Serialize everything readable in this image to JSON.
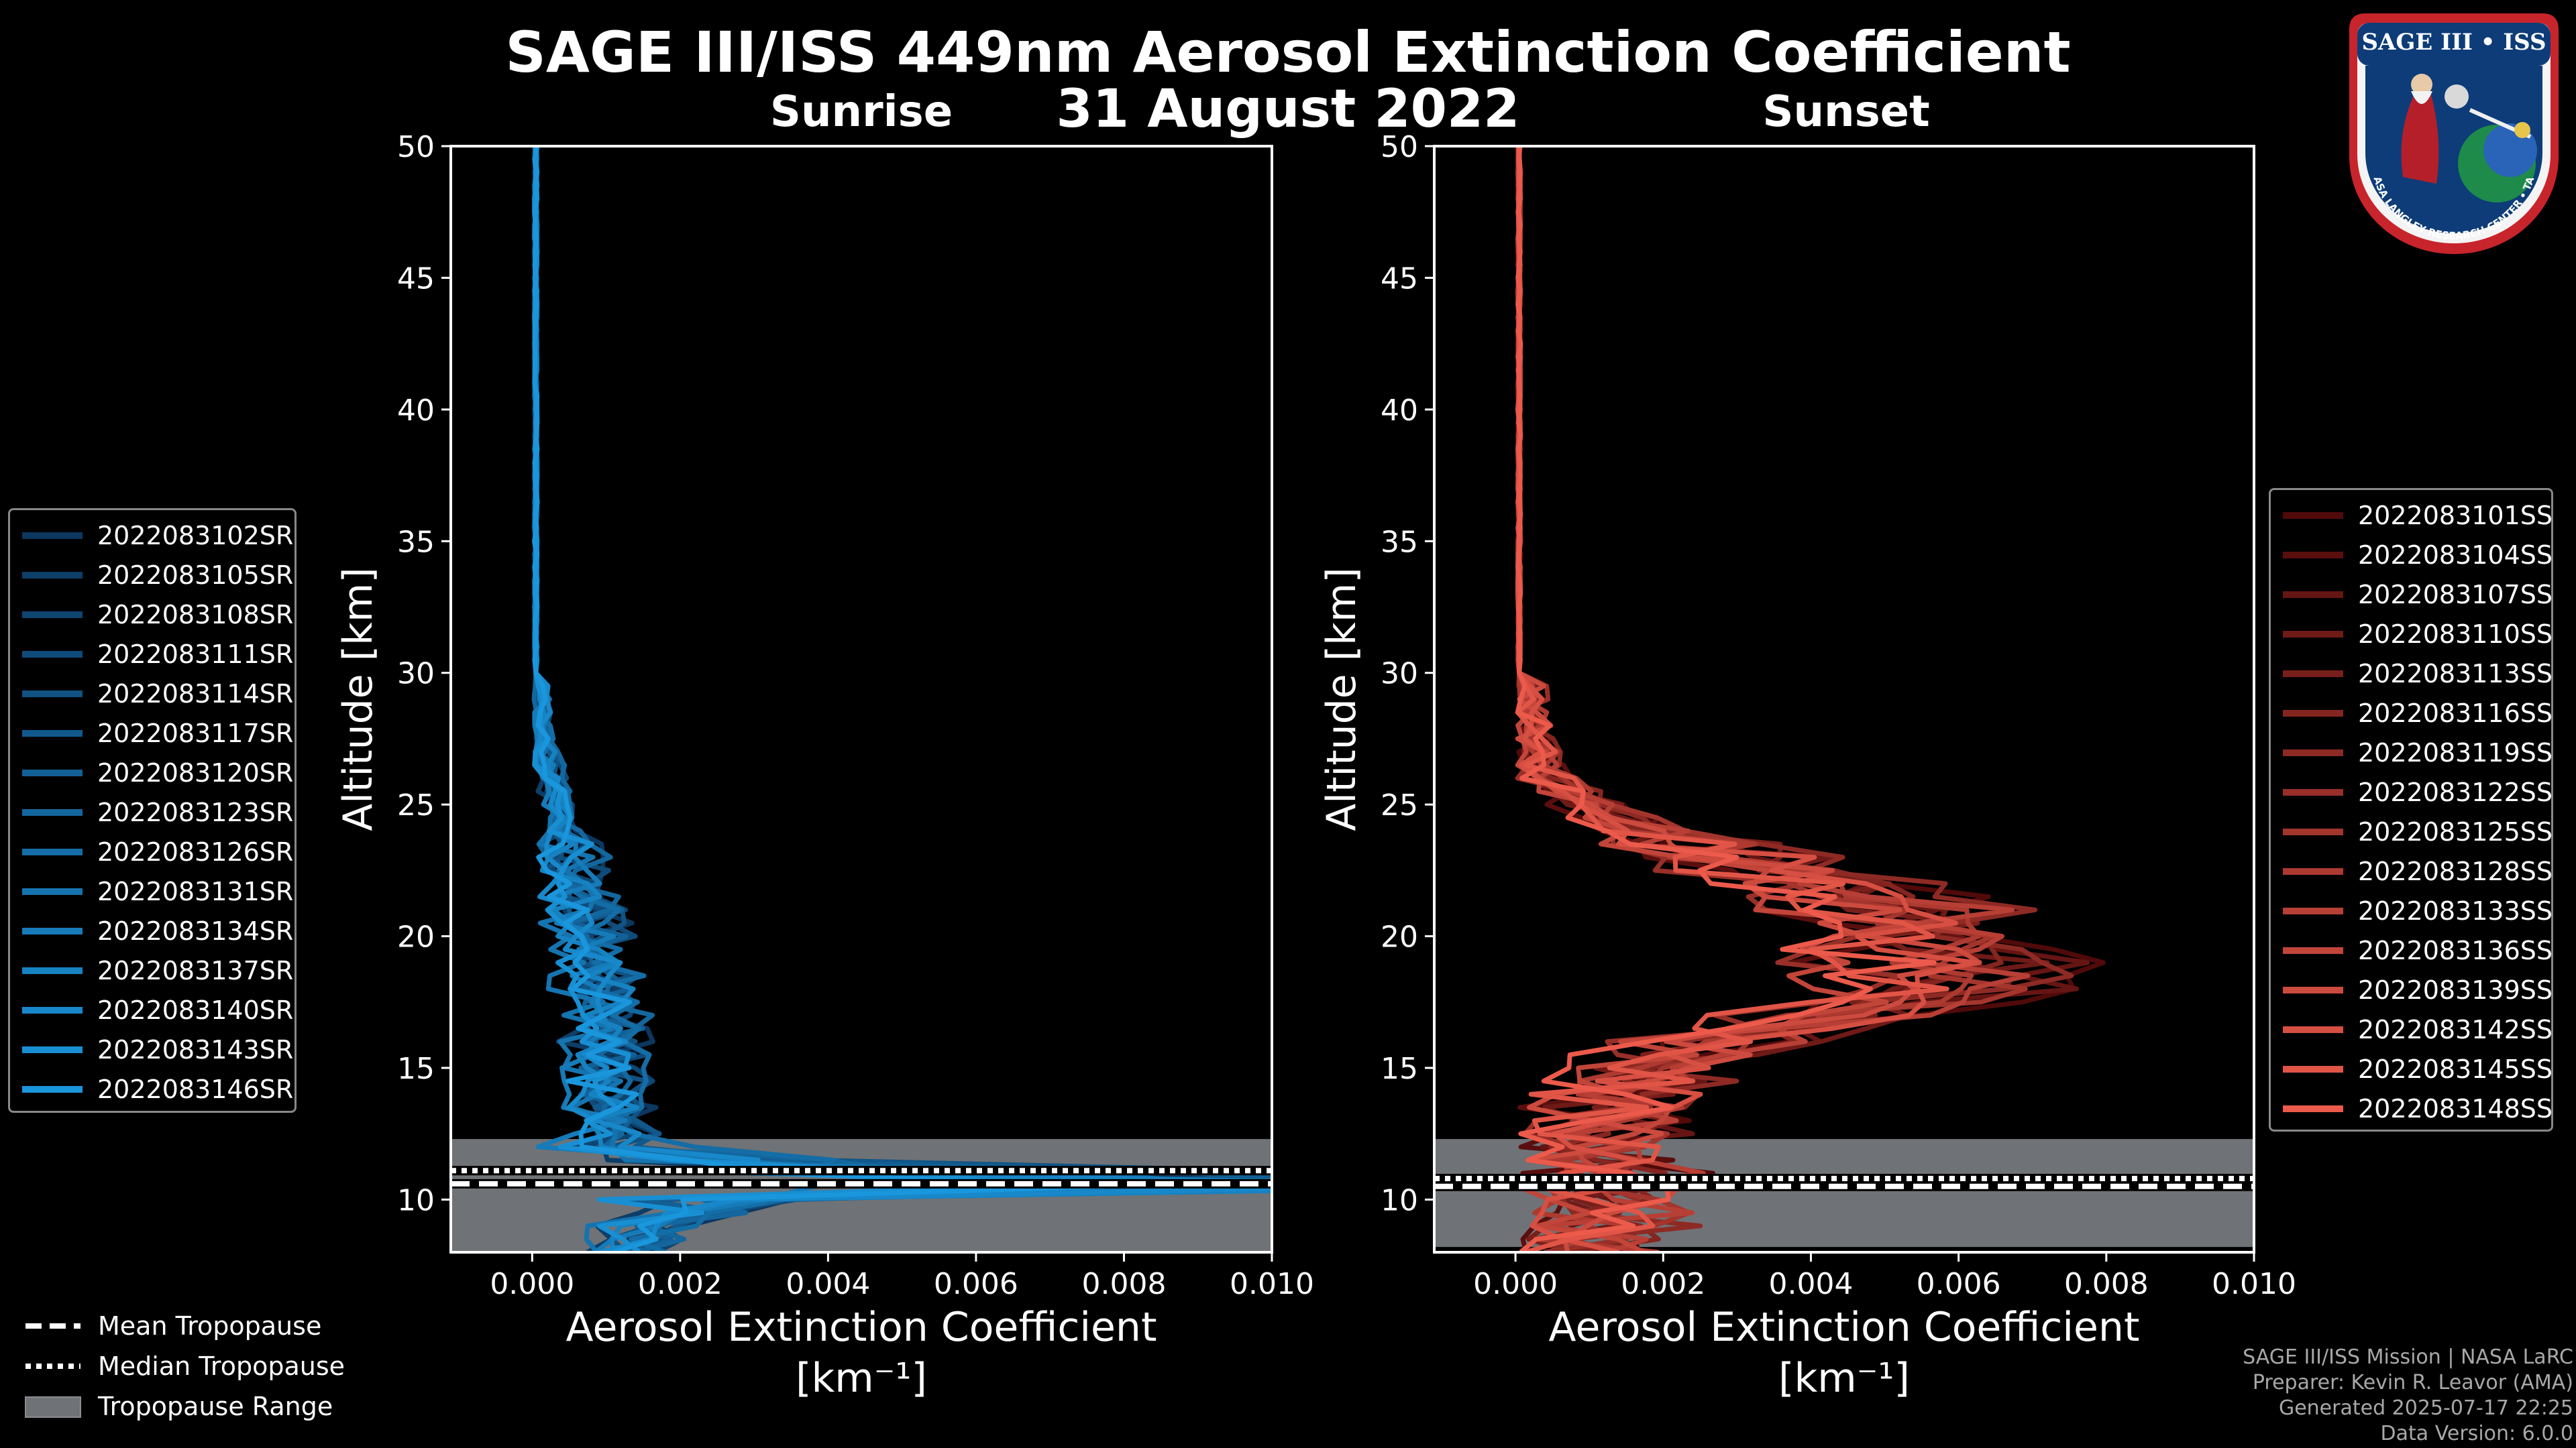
{
  "title": "SAGE III/ISS 449nm Aerosol Extinction Coefficient",
  "subtitle": "31 August 2022",
  "colors": {
    "sunrise": "#1a8fd0",
    "sunset": "#e8574a",
    "tropo_fill": "#6f7276"
  },
  "sunrise_ids": [
    "2022083102SR",
    "2022083105SR",
    "2022083108SR",
    "2022083111SR",
    "2022083114SR",
    "2022083117SR",
    "2022083120SR",
    "2022083123SR",
    "2022083126SR",
    "2022083131SR",
    "2022083134SR",
    "2022083137SR",
    "2022083140SR",
    "2022083143SR",
    "2022083146SR"
  ],
  "sunset_ids": [
    "2022083101SS",
    "2022083104SS",
    "2022083107SS",
    "2022083110SS",
    "2022083113SS",
    "2022083116SS",
    "2022083119SS",
    "2022083122SS",
    "2022083125SS",
    "2022083128SS",
    "2022083133SS",
    "2022083136SS",
    "2022083139SS",
    "2022083142SS",
    "2022083145SS",
    "2022083148SS"
  ],
  "tropopause_legend": {
    "mean": "Mean Tropopause",
    "median": "Median Tropopause",
    "range": "Tropopause Range"
  },
  "credits": [
    "SAGE III/ISS Mission | NASA LaRC",
    "Preparer: Kevin R. Leavor (AMA)",
    "Generated 2025-07-17 22:25",
    "Data Version: 6.0.0"
  ],
  "logo": {
    "text": "SAGE III • ISS",
    "ring_text": "BALL • NASA LANGLEY RESEARCH CENTER • TAS-I • ESA"
  },
  "chart_data": [
    {
      "type": "line",
      "title": "Sunrise",
      "xlabel": "Aerosol Extinction Coefficient",
      "xlabel_unit": "[km⁻¹]",
      "ylabel": "Altitude [km]",
      "xlim": [
        -0.0011,
        0.01
      ],
      "ylim": [
        8,
        50
      ],
      "xticks": [
        "0.000",
        "0.002",
        "0.004",
        "0.006",
        "0.008",
        "0.010"
      ],
      "yticks": [
        "10",
        "15",
        "20",
        "25",
        "30",
        "35",
        "40",
        "45",
        "50"
      ],
      "tropopause": {
        "mean": 10.6,
        "median": 11.1,
        "range": [
          8,
          12.3
        ]
      },
      "base_profile": [
        [
          50,
          5e-05
        ],
        [
          45,
          5e-05
        ],
        [
          40,
          5e-05
        ],
        [
          35,
          5e-05
        ],
        [
          30,
          5e-05
        ],
        [
          28,
          0.0001
        ],
        [
          26,
          0.00025
        ],
        [
          24,
          0.0004
        ],
        [
          22,
          0.0006
        ],
        [
          20,
          0.0008
        ],
        [
          18,
          0.0009
        ],
        [
          16,
          0.001
        ],
        [
          14,
          0.001
        ],
        [
          13,
          0.0011
        ],
        [
          12,
          0.0012
        ],
        [
          11.5,
          0.003
        ],
        [
          11,
          0.008
        ],
        [
          10.5,
          0.0105
        ],
        [
          10,
          0.003
        ],
        [
          9,
          0.0015
        ],
        [
          8,
          0.0012
        ]
      ],
      "series_names_ref": "sunrise_ids"
    },
    {
      "type": "line",
      "title": "Sunset",
      "xlabel": "Aerosol Extinction Coefficient",
      "xlabel_unit": "[km⁻¹]",
      "ylabel": "Altitude [km]",
      "xlim": [
        -0.0011,
        0.01
      ],
      "ylim": [
        8,
        50
      ],
      "xticks": [
        "0.000",
        "0.002",
        "0.004",
        "0.006",
        "0.008",
        "0.010"
      ],
      "yticks": [
        "10",
        "15",
        "20",
        "25",
        "30",
        "35",
        "40",
        "45",
        "50"
      ],
      "tropopause": {
        "mean": 10.5,
        "median": 10.8,
        "range": [
          8.2,
          12.3
        ]
      },
      "base_profile": [
        [
          50,
          5e-05
        ],
        [
          45,
          5e-05
        ],
        [
          40,
          5e-05
        ],
        [
          35,
          5e-05
        ],
        [
          30,
          5e-05
        ],
        [
          28,
          0.0001
        ],
        [
          27,
          0.0002
        ],
        [
          26,
          0.0005
        ],
        [
          25,
          0.001
        ],
        [
          24,
          0.0018
        ],
        [
          23,
          0.003
        ],
        [
          22,
          0.0042
        ],
        [
          21,
          0.005
        ],
        [
          20,
          0.0055
        ],
        [
          19,
          0.0058
        ],
        [
          18,
          0.0056
        ],
        [
          17,
          0.0042
        ],
        [
          16,
          0.0028
        ],
        [
          15,
          0.0018
        ],
        [
          14,
          0.0014
        ],
        [
          13,
          0.0012
        ],
        [
          12,
          0.0012
        ],
        [
          11,
          0.0013
        ],
        [
          10,
          0.0013
        ],
        [
          9,
          0.0012
        ],
        [
          8.2,
          0.0011
        ]
      ],
      "series_names_ref": "sunset_ids"
    }
  ]
}
